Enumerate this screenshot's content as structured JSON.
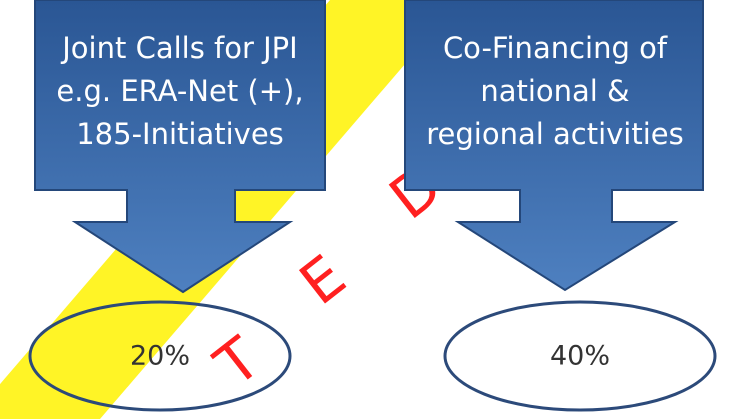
{
  "nodes": [
    {
      "lines": [
        "Joint Calls for JPI",
        "e.g. ERA-Net (+),",
        "185-Initiatives"
      ],
      "result": "20%"
    },
    {
      "lines": [
        "Co-Financing of",
        "national &",
        "regional activities"
      ],
      "result": "40%"
    }
  ],
  "watermark": [
    "T",
    "E",
    "D"
  ]
}
